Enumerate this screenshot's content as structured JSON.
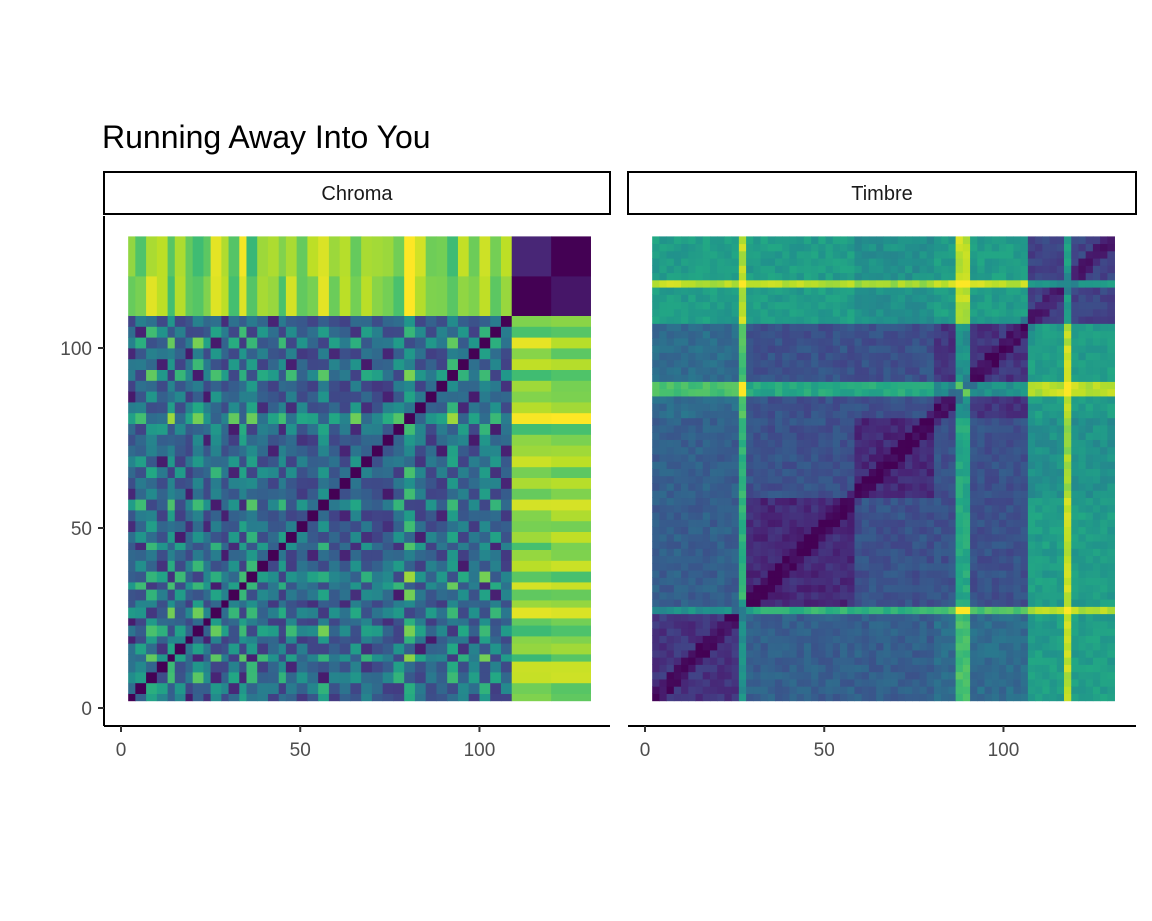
{
  "chart_data": {
    "type": "heatmap",
    "title": "Running Away Into You",
    "panels": [
      {
        "name": "Chroma",
        "xlim": [
          0,
          130
        ],
        "ylim": [
          0,
          130
        ],
        "x_ticks": [
          0,
          50,
          100
        ],
        "y_ticks": [
          0,
          50,
          100
        ],
        "n_segments": 40,
        "segment_bounds": [
          2,
          4,
          7,
          10,
          13,
          15,
          18,
          20,
          23,
          25,
          28,
          30,
          33,
          35,
          38,
          41,
          44,
          46,
          49,
          52,
          55,
          58,
          61,
          64,
          67,
          70,
          73,
          76,
          79,
          82,
          85,
          88,
          91,
          94,
          97,
          100,
          103,
          106,
          109,
          120,
          131
        ],
        "segment_profile": [
          3,
          2,
          6,
          5,
          1,
          5,
          3,
          1,
          3,
          6,
          4,
          2,
          6,
          1,
          5,
          4,
          2,
          5,
          3,
          4,
          6,
          3,
          4,
          2,
          5,
          4,
          3,
          2,
          7,
          5,
          3,
          4,
          1,
          5,
          3,
          6,
          2,
          4,
          1,
          9
        ],
        "outro_start_index": 38,
        "distance_scale": "viridis (dark = similar, yellow = different)"
      },
      {
        "name": "Timbre",
        "xlim": [
          0,
          130
        ],
        "ylim": [
          0,
          130
        ],
        "x_ticks": [
          0,
          50,
          100
        ],
        "y_ticks": [],
        "n_segments": 40,
        "segment_bounds": [
          2,
          8,
          14,
          20,
          26,
          28,
          32,
          38,
          42,
          44,
          48,
          52,
          56,
          60,
          64,
          68,
          72,
          76,
          78,
          80,
          84,
          88,
          92,
          96,
          100,
          104,
          106,
          108,
          112,
          116,
          120,
          124,
          126,
          128,
          129,
          130,
          130.5,
          131,
          131.5,
          132,
          132.5
        ],
        "section_bounds": [
          2,
          28,
          58,
          80,
          106,
          131
        ],
        "section_levels": [
          [
            0.15,
            0.3,
            0.3,
            0.35,
            0.55
          ],
          [
            0.3,
            0.12,
            0.25,
            0.25,
            0.55
          ],
          [
            0.3,
            0.25,
            0.12,
            0.25,
            0.5
          ],
          [
            0.35,
            0.25,
            0.25,
            0.15,
            0.55
          ],
          [
            0.55,
            0.55,
            0.5,
            0.55,
            0.2
          ]
        ],
        "bright_columns": [
          27,
          88,
          90,
          118
        ],
        "distance_scale": "viridis (dark = similar, yellow = different)"
      }
    ]
  }
}
